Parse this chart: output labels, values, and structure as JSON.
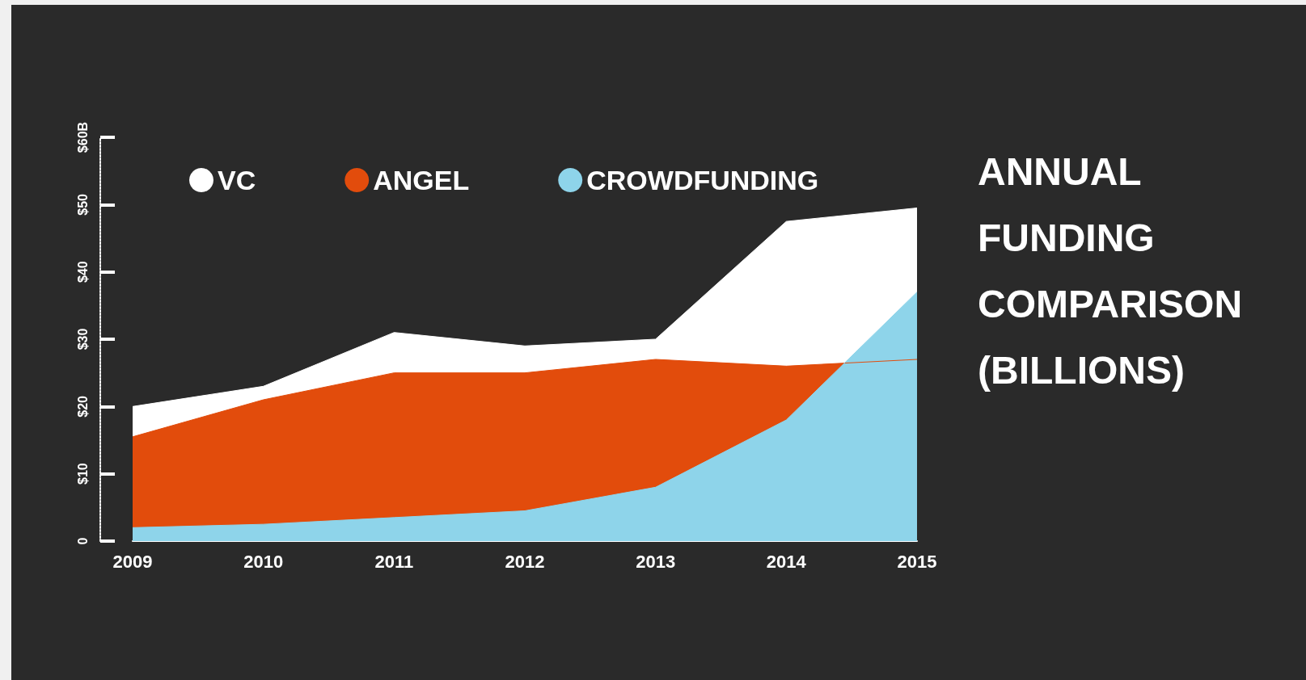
{
  "chart_data": {
    "type": "area",
    "title": "ANNUAL FUNDING COMPARISON (BILLIONS)",
    "categories": [
      "2009",
      "2010",
      "2011",
      "2012",
      "2013",
      "2014",
      "2015"
    ],
    "series": [
      {
        "name": "VC",
        "color": "#ffffff",
        "values": [
          20,
          23,
          31,
          29,
          30,
          47.5,
          49.5
        ]
      },
      {
        "name": "ANGEL",
        "color": "#e24c0c",
        "values": [
          15.5,
          21,
          25,
          25,
          27,
          26,
          27
        ]
      },
      {
        "name": "CROWDFUNDING",
        "color": "#8ed4ea",
        "values": [
          2,
          2.5,
          3.5,
          4.5,
          8,
          18,
          37
        ]
      }
    ],
    "ylim": [
      0,
      60
    ],
    "yticks": [
      {
        "value": 0,
        "label": "0"
      },
      {
        "value": 10,
        "label": "$10"
      },
      {
        "value": 20,
        "label": "$20"
      },
      {
        "value": 30,
        "label": "$30"
      },
      {
        "value": 40,
        "label": "$40"
      },
      {
        "value": 50,
        "label": "$50"
      },
      {
        "value": 60,
        "label": "$60B"
      }
    ],
    "legend": "top left",
    "grid": false
  }
}
